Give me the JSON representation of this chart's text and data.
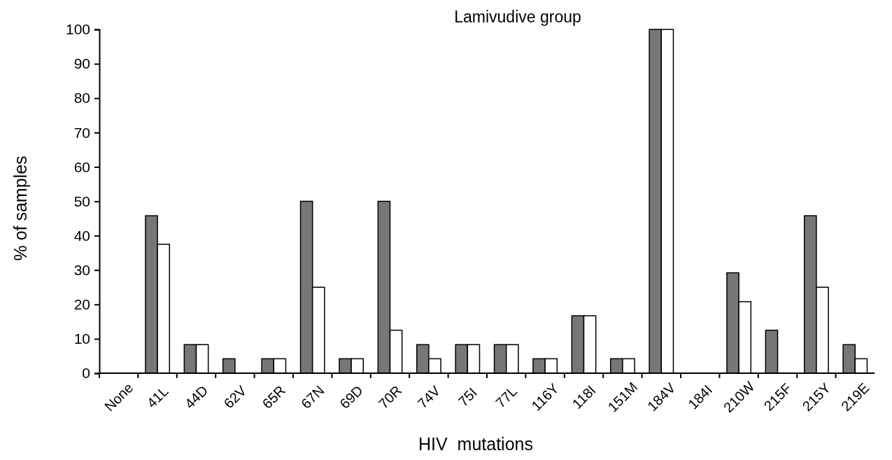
{
  "chart_data": {
    "type": "bar",
    "title": "Lamivudive group",
    "xlabel": "HIV  mutations",
    "ylabel": "% of samples",
    "categories": [
      "None",
      "41L",
      "44D",
      "62V",
      "65R",
      "67N",
      "69D",
      "70R",
      "74V",
      "75I",
      "77L",
      "116Y",
      "118I",
      "151M",
      "184V",
      "184I",
      "210W",
      "215F",
      "215Y",
      "219E"
    ],
    "series": [
      {
        "color": "#777777",
        "values": [
          0,
          45.8,
          8.3,
          4.2,
          4.2,
          50,
          4.2,
          50,
          8.3,
          8.3,
          8.3,
          4.2,
          16.7,
          4.2,
          100,
          0,
          29.2,
          12.5,
          45.8,
          8.3
        ]
      },
      {
        "color": "#ffffff",
        "values": [
          0,
          37.5,
          8.3,
          0,
          4.2,
          25,
          4.2,
          12.5,
          4.2,
          8.3,
          8.3,
          4.2,
          16.7,
          4.2,
          100,
          0,
          20.8,
          0,
          25,
          4.2
        ]
      }
    ],
    "ylim": [
      0,
      100
    ],
    "yticks": [
      0,
      10,
      20,
      30,
      40,
      50,
      60,
      70,
      80,
      90,
      100
    ],
    "grid": false
  }
}
